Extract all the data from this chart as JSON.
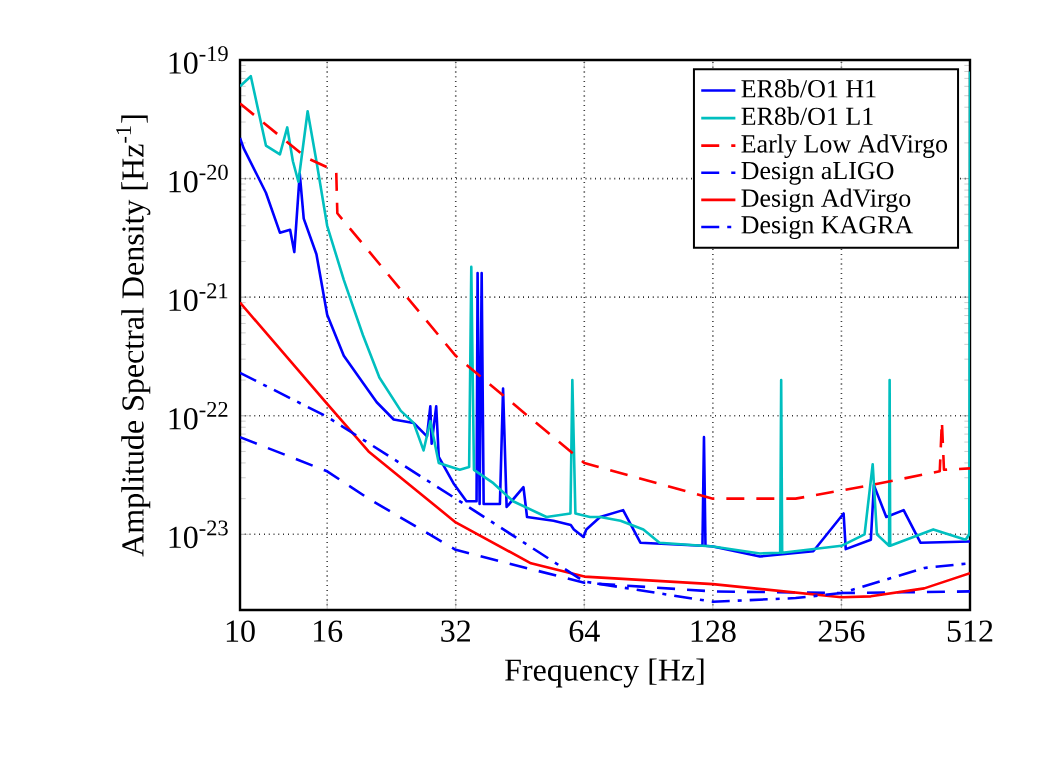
{
  "chart_data": {
    "type": "line",
    "xlabel": "Frequency [Hz]",
    "ylabel": "Amplitude Spectral Density [Hz$^{-1}$]",
    "log": "xy",
    "grid": true,
    "legend": "top right",
    "xlim": [
      10,
      512
    ],
    "ylim": [
      2.3e-24,
      1e-19
    ],
    "xticks": [
      10,
      16,
      32,
      64,
      128,
      256,
      512
    ],
    "yticks": [
      {
        "value": 1e-23,
        "label": "10$^{-23}$"
      },
      {
        "value": 1e-22,
        "label": "10$^{-22}$"
      },
      {
        "value": 1e-21,
        "label": "10$^{-21}$"
      },
      {
        "value": 1e-20,
        "label": "10$^{-20}$"
      },
      {
        "value": 1e-19,
        "label": "10$^{-19}$"
      }
    ],
    "series": [
      {
        "name": "ER8b/O1 H1",
        "color": "#0000ff",
        "line_style": "solid",
        "x": [
          10,
          10.2,
          11.5,
          12.4,
          13.1,
          13.4,
          13.8,
          14.1,
          15.1,
          16,
          17.5,
          19.4,
          20.9,
          22.9,
          25.5,
          27.4,
          27.9,
          28.1,
          28.8,
          29.2,
          31.6,
          33.9,
          35.8,
          36,
          36.4,
          36.8,
          37.2,
          40.6,
          41.3,
          42.1,
          46.1,
          47,
          54.2,
          59.5,
          60.5,
          63.7,
          64.7,
          69.7,
          78.9,
          86.6,
          121,
          122,
          123,
          128,
          165,
          220,
          259,
          262,
          300,
          305,
          326,
          358,
          392,
          512
        ],
        "values": [
          2.2e-20,
          1.8e-20,
          7.6e-21,
          3.5e-21,
          3.7e-21,
          2.4e-21,
          1.1e-20,
          4.6e-21,
          2.3e-21,
          7.1e-22,
          3.2e-22,
          1.9e-22,
          1.3e-22,
          9.3e-23,
          8.7e-23,
          6.7e-23,
          1.2e-22,
          5.8e-23,
          1.2e-22,
          4.5e-23,
          2.7e-23,
          1.9e-23,
          1.9e-23,
          1.6e-21,
          1.8e-23,
          1.6e-21,
          1.8e-23,
          1.8e-23,
          1.7e-22,
          1.7e-23,
          2.5e-23,
          1.4e-23,
          1.3e-23,
          1.2e-23,
          1.1e-23,
          9.5e-24,
          1.1e-23,
          1.4e-23,
          1.6e-23,
          8.5e-24,
          8e-24,
          6.6e-23,
          8e-24,
          7.9e-24,
          6.5e-24,
          7.2e-24,
          1.5e-23,
          7.5e-24,
          9e-24,
          2.6e-23,
          1.4e-23,
          1.6e-23,
          8.5e-24,
          8.7e-24
        ]
      },
      {
        "name": "ER8b/O1 L1",
        "color": "#00bfbf",
        "line_style": "solid",
        "x": [
          10,
          10.6,
          11.5,
          12.4,
          12.9,
          13.3,
          13.7,
          14.4,
          15.1,
          16,
          17.5,
          19.4,
          21.2,
          23.8,
          25.5,
          26.9,
          27.9,
          29.2,
          32.7,
          34.4,
          34.8,
          35.3,
          39.2,
          43.6,
          52.2,
          59.4,
          60,
          61,
          66,
          69.7,
          77.8,
          88,
          96,
          128,
          165,
          184,
          185,
          186,
          256,
          290,
          303,
          310,
          331,
          332,
          333,
          420,
          500,
          510,
          512
        ],
        "values": [
          6e-20,
          7.3e-20,
          1.9e-20,
          1.6e-20,
          2.7e-20,
          1.4e-20,
          9.4e-21,
          3.7e-20,
          1.4e-20,
          4e-21,
          1.4e-21,
          4.8e-22,
          2.1e-22,
          1.1e-22,
          8.7e-23,
          5.1e-23,
          9e-23,
          4e-23,
          3.5e-23,
          3.7e-23,
          1.8e-21,
          3.5e-23,
          2.7e-23,
          1.9e-23,
          1.4e-23,
          1.5e-23,
          2e-22,
          1.5e-23,
          1.4e-23,
          1.4e-23,
          1.3e-23,
          1.1e-23,
          8.5e-24,
          7.9e-24,
          6.9e-24,
          7e-24,
          2e-22,
          7e-24,
          8e-24,
          1e-23,
          3.9e-23,
          1e-23,
          8e-24,
          2e-22,
          8e-24,
          1.1e-23,
          9e-24,
          1e-23,
          8e-20
        ]
      },
      {
        "name": "Early Low AdVirgo",
        "color": "#ff0000",
        "line_style": "dashed",
        "x": [
          10,
          14.3,
          16.8,
          16.9,
          32,
          64,
          128,
          200,
          300,
          435,
          440,
          445,
          512
        ],
        "values": [
          4.3e-20,
          1.5e-20,
          1.15e-20,
          5.1e-21,
          3.2e-22,
          4e-23,
          2e-23,
          2e-23,
          2.6e-23,
          3.4e-23,
          9e-23,
          3.5e-23,
          3.6e-23
        ]
      },
      {
        "name": "Design aLIGO",
        "color": "#0000ff",
        "line_style": "dashed",
        "x": [
          10,
          16,
          20,
          32,
          64,
          128,
          256,
          512
        ],
        "values": [
          6.6e-23,
          3.4e-23,
          2e-23,
          7.4e-24,
          3.9e-24,
          3.3e-24,
          3.2e-24,
          3.3e-24
        ]
      },
      {
        "name": "Design AdVirgo",
        "color": "#ff0000",
        "line_style": "solid",
        "x": [
          10,
          16,
          20,
          32,
          48,
          64,
          128,
          256,
          300,
          400,
          512
        ],
        "values": [
          9e-22,
          1.26e-22,
          5e-23,
          1.26e-23,
          5.7e-24,
          4.4e-24,
          3.8e-24,
          2.95e-24,
          3e-24,
          3.5e-24,
          4.7e-24
        ]
      },
      {
        "name": "Design KAGRA",
        "color": "#0000ff",
        "line_style": "dashdot",
        "x": [
          10,
          16,
          32,
          64,
          128,
          200,
          256,
          400,
          512
        ],
        "values": [
          2.3e-22,
          9.8e-23,
          2e-23,
          4e-24,
          2.7e-24,
          2.9e-24,
          3.2e-24,
          5.2e-24,
          5.7e-24
        ]
      }
    ]
  }
}
